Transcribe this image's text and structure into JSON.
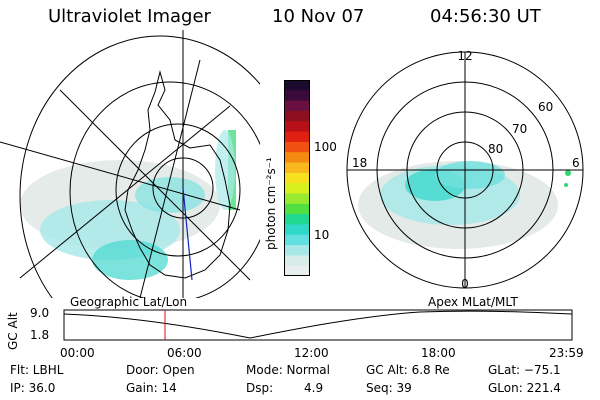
{
  "header": {
    "title": "Ultraviolet Imager",
    "date": "10 Nov 07",
    "time": "04:56:30 UT"
  },
  "colorbar": {
    "unit_label": "photon cm⁻²s⁻¹",
    "ticks": [
      "100",
      "10"
    ],
    "colors": [
      "#1b0b2e",
      "#3a0a3a",
      "#6a1040",
      "#8c1020",
      "#b81018",
      "#e02010",
      "#f05010",
      "#f58a10",
      "#f9b820",
      "#f6e020",
      "#d8f020",
      "#9aea30",
      "#50e040",
      "#20d890",
      "#30d8c8",
      "#60e0e0",
      "#a8e8e8",
      "#d8ece8",
      "#e8eeee"
    ]
  },
  "geo_plot": {
    "caption": "Geographic Lat/Lon"
  },
  "polar_plot": {
    "caption": "Apex MLat/MLT",
    "mlt_labels": {
      "top": "12",
      "left": "18",
      "right": "6",
      "bottom": "0"
    },
    "lat_labels": [
      "60",
      "70",
      "80"
    ]
  },
  "altitude_plot": {
    "ylabel": "GC Alt",
    "yticks": [
      "9.0",
      "1.8"
    ],
    "xticks": [
      "00:00",
      "06:00",
      "12:00",
      "18:00",
      "23:59"
    ]
  },
  "info": {
    "flt": "Flt: LBHL",
    "ip": "IP: 36.0",
    "door": "Door: Open",
    "gain": "Gain: 14",
    "mode": "Mode: Normal",
    "dsp_label": "Dsp:",
    "dsp_value": "4.9",
    "gc_alt": "GC Alt: 6.8 Re",
    "seq": "Seq: 39",
    "glat": "GLat: −75.1",
    "glon": "GLon: 221.4"
  }
}
